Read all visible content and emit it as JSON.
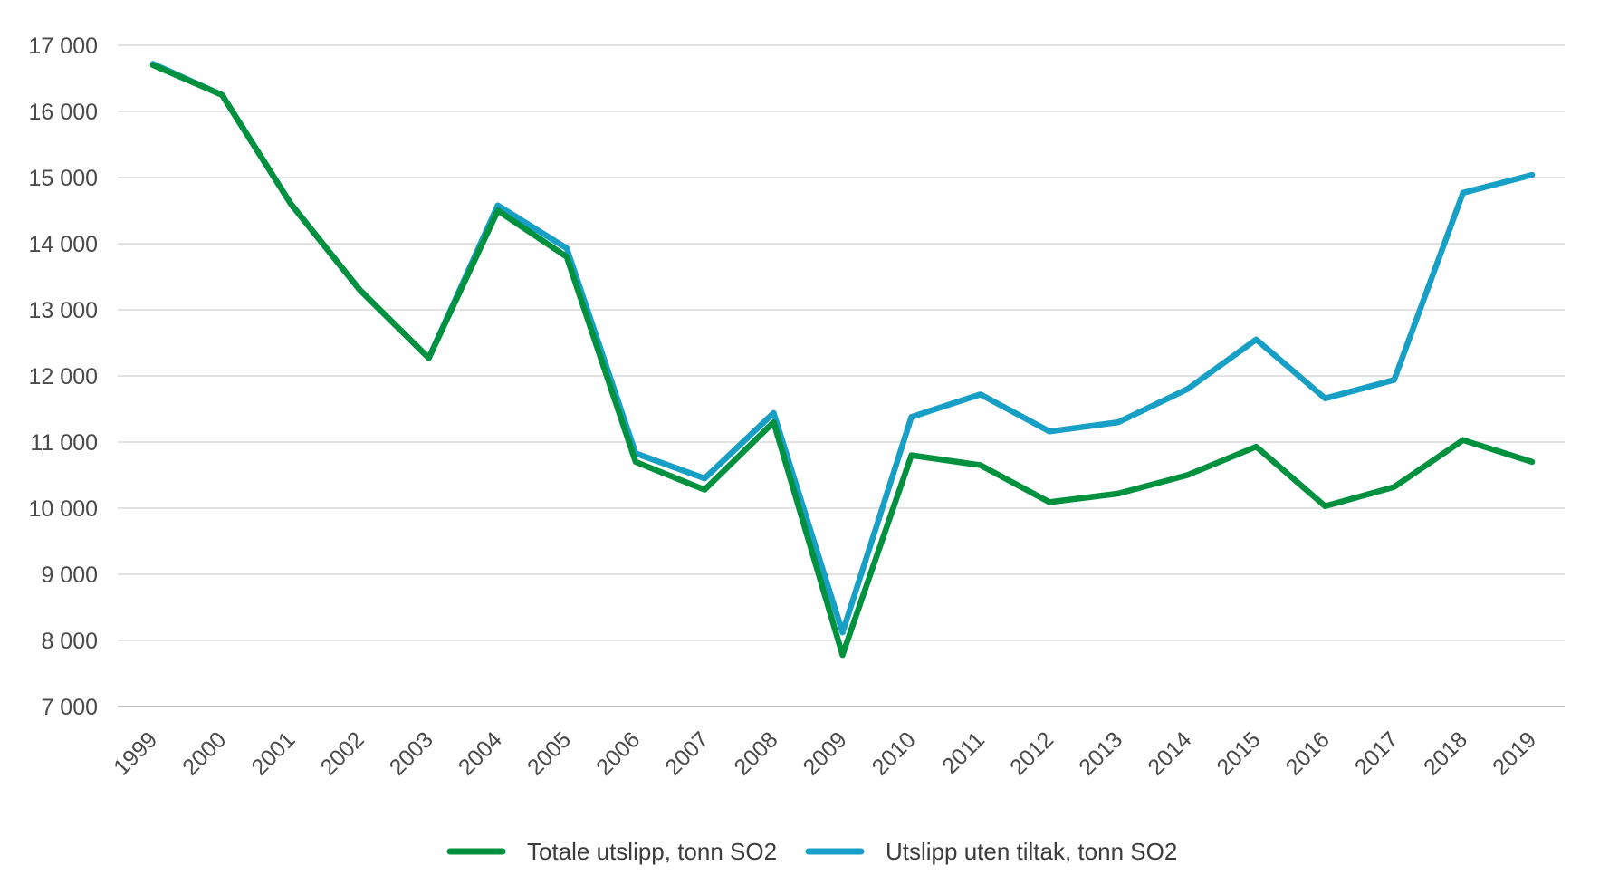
{
  "chart_data": {
    "type": "line",
    "title": "",
    "xlabel": "",
    "ylabel": "",
    "ylim": [
      7000,
      17000
    ],
    "yticks": [
      7000,
      8000,
      9000,
      10000,
      11000,
      12000,
      13000,
      14000,
      15000,
      16000,
      17000
    ],
    "ytick_labels": [
      "7 000",
      "8 000",
      "9 000",
      "10 000",
      "11 000",
      "12 000",
      "13 000",
      "14 000",
      "15 000",
      "16 000",
      "17 000"
    ],
    "categories": [
      "1999",
      "2000",
      "2001",
      "2002",
      "2003",
      "2004",
      "2005",
      "2006",
      "2007",
      "2008",
      "2009",
      "2010",
      "2011",
      "2012",
      "2013",
      "2014",
      "2015",
      "2016",
      "2017",
      "2018",
      "2019"
    ],
    "grid": "horizontal",
    "legend_position": "bottom-center",
    "series": [
      {
        "name": "Totale utslipp, tonn SO2",
        "color": "#00913f",
        "values": [
          16700,
          16250,
          14600,
          13300,
          12270,
          14500,
          13800,
          10700,
          10280,
          11300,
          7780,
          10800,
          10650,
          10090,
          10220,
          10500,
          10930,
          10030,
          10320,
          11030,
          10700
        ]
      },
      {
        "name": "Utslipp uten tiltak, tonn SO2",
        "color": "#189fc6",
        "values": [
          16720,
          16250,
          14600,
          13300,
          12270,
          14580,
          13930,
          10830,
          10450,
          11440,
          8120,
          11380,
          11720,
          11160,
          11300,
          11800,
          12550,
          11660,
          11940,
          14770,
          15040
        ]
      }
    ]
  }
}
